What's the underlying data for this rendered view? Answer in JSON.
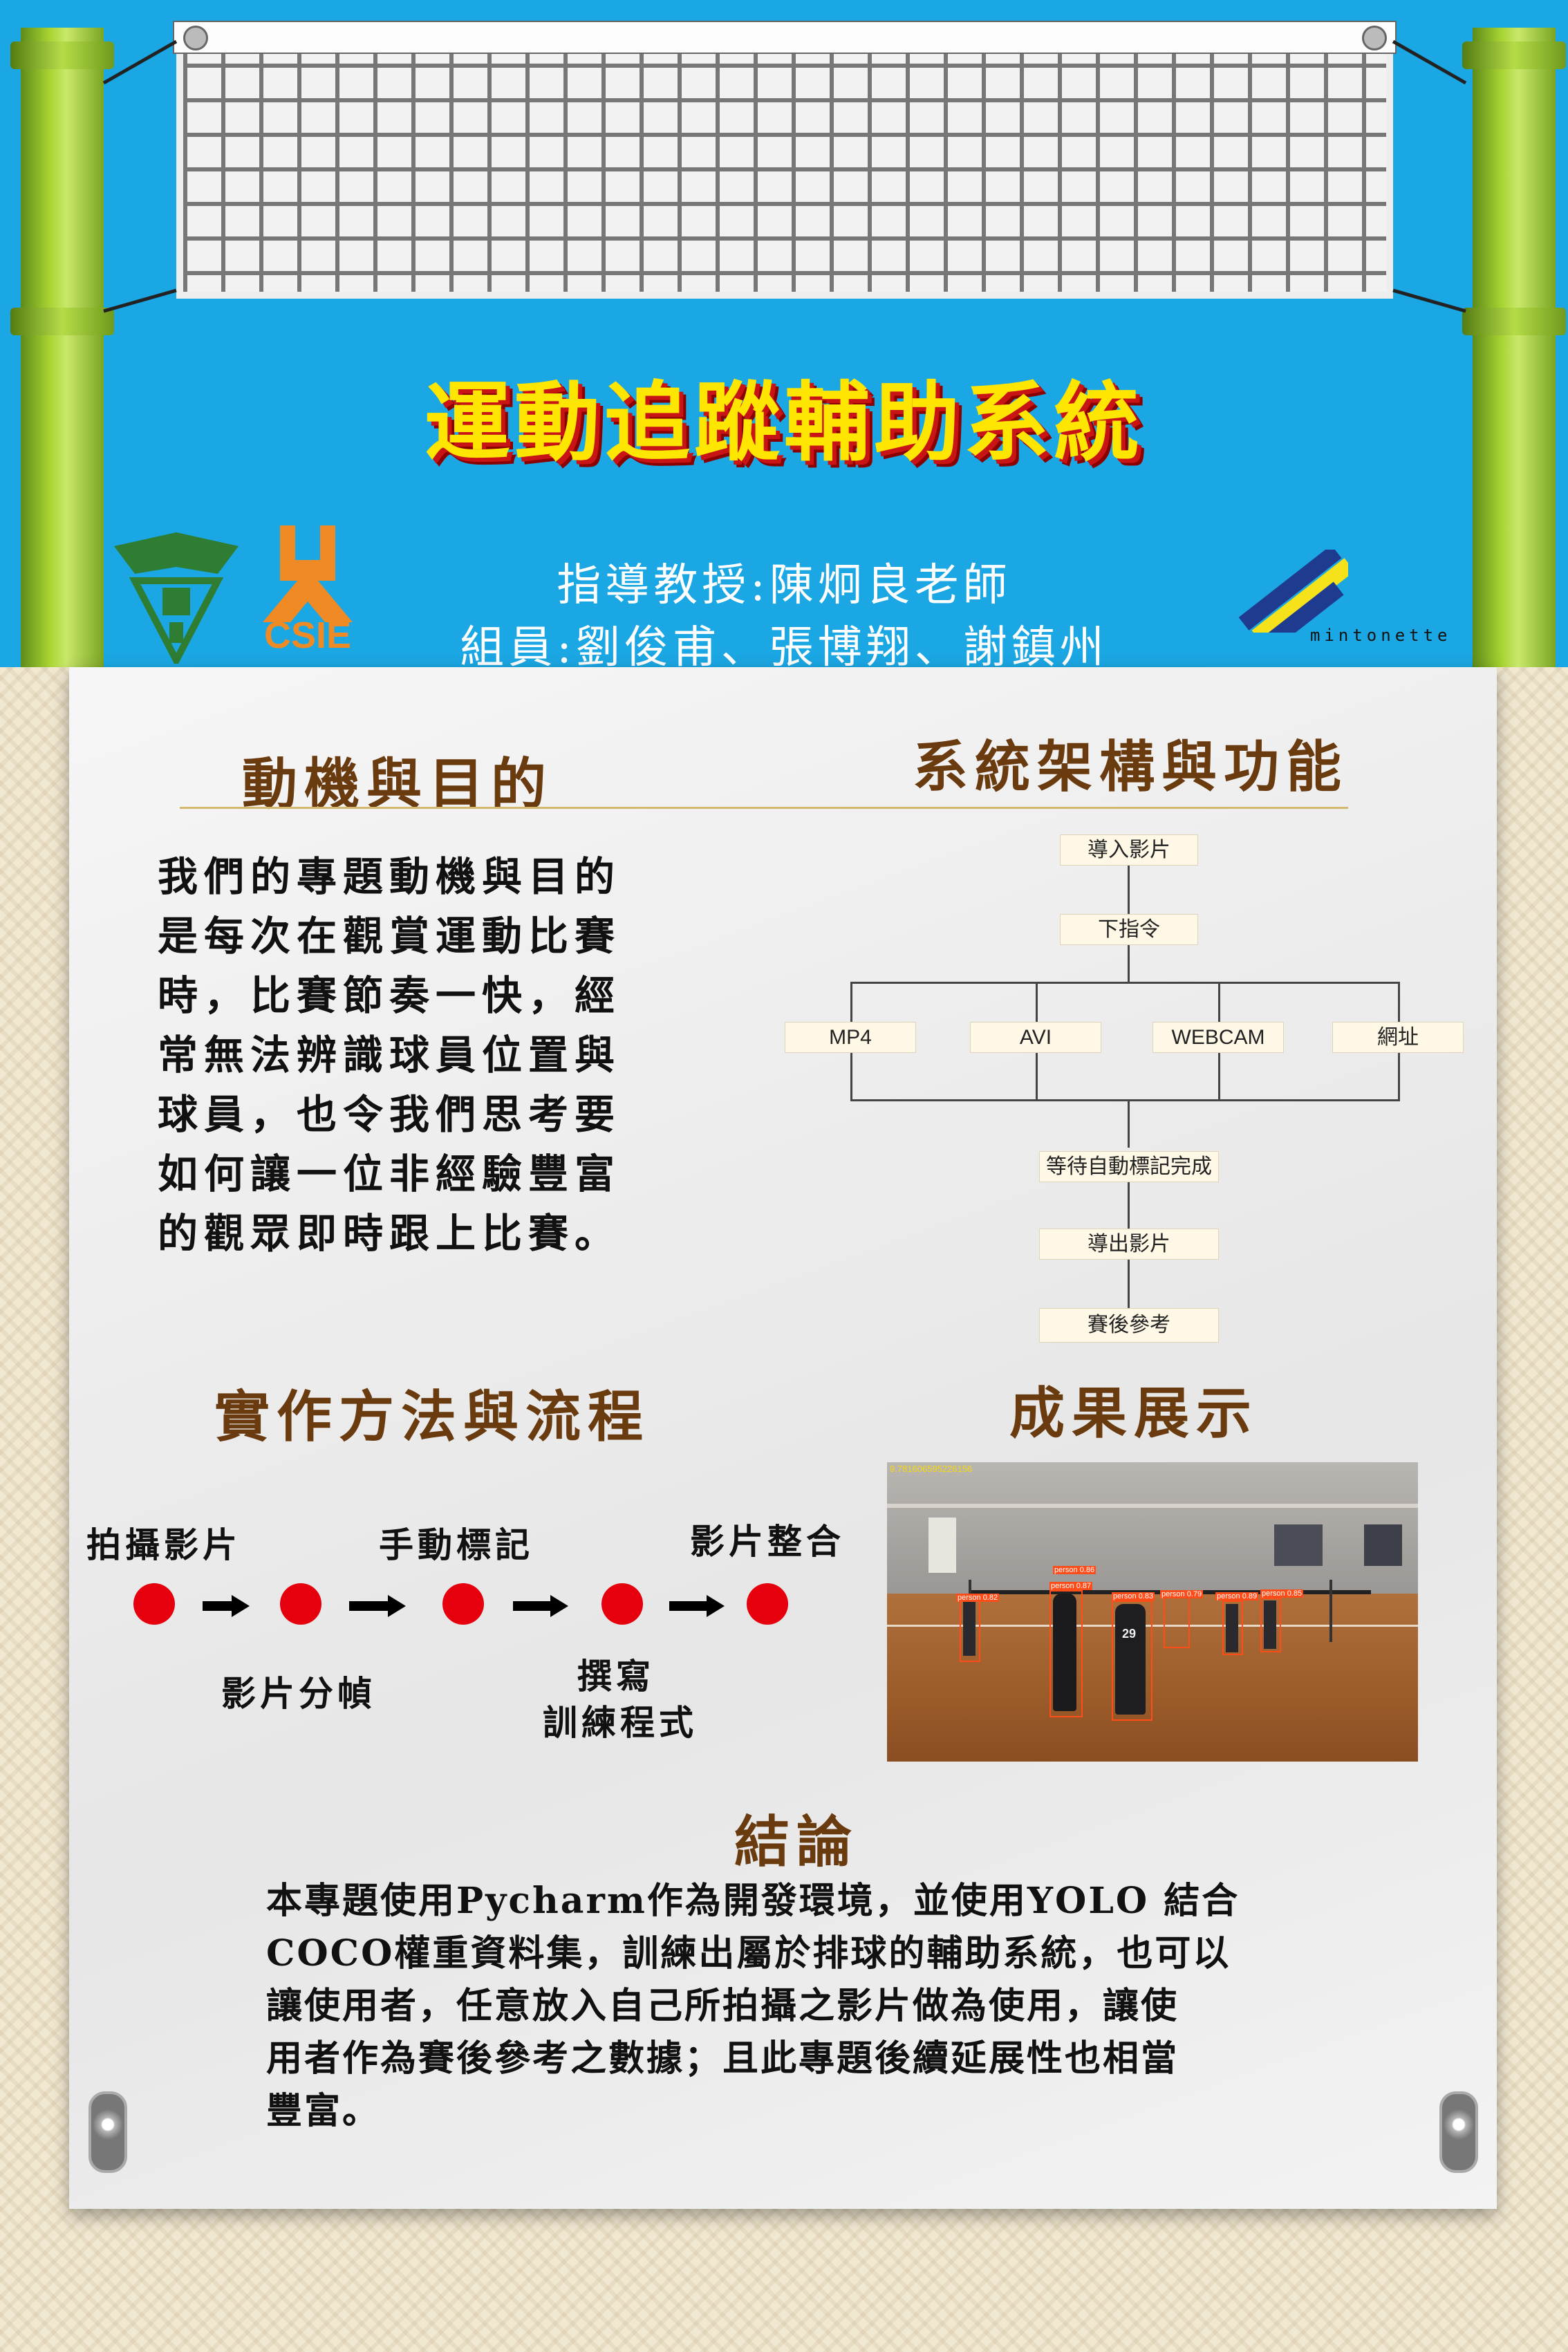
{
  "poster": {
    "title": "運動追蹤輔助系統",
    "advisor": "指導教授:陳炯良老師",
    "members": "組員:劉俊甫、張博翔、謝鎮州",
    "logo_csie_text": "CSIE",
    "logo_right_text": "mintonette"
  },
  "sections": {
    "motive": {
      "heading": "動機與目的",
      "lines": [
        "我們的專題動機與目的",
        "是每次在觀賞運動比賽",
        "時，比賽節奏一快，經",
        "常無法辨識球員位置與",
        "球員，也令我們思考要",
        "如何讓一位非經驗豐富",
        "的觀眾即時跟上比賽。"
      ]
    },
    "architecture": {
      "heading": "系統架構與功能",
      "flow": {
        "import": "導入影片",
        "command": "下指令",
        "options": [
          "MP4",
          "AVI",
          "WEBCAM",
          "網址"
        ],
        "wait": "等待自動標記完成",
        "export": "導出影片",
        "reference": "賽後參考"
      }
    },
    "method": {
      "heading": "實作方法與流程",
      "top_labels": [
        "拍攝影片",
        "手動標記",
        "影片整合"
      ],
      "bottom_labels": [
        "影片分幀",
        "撰寫",
        "訓練程式"
      ]
    },
    "results": {
      "heading": "成果展示",
      "overlay_text": "9.781606595226156",
      "box_labels": [
        "person 0.87",
        "person 0.83",
        "person 0.82",
        "person 0.79",
        "person 0.89",
        "person 0.85",
        "person 0.86"
      ],
      "jersey": "29"
    },
    "conclusion": {
      "heading": "結論",
      "lines": [
        "本專題使用Pycharm作為開發環境，並使用YOLO 結合",
        "COCO權重資料集，訓練出屬於排球的輔助系統，也可以",
        "讓使用者，任意放入自己所拍攝之影片做為使用，讓使",
        "用者作為賽後參考之數據；且此專題後續延展性也相當",
        "豐富。"
      ]
    }
  },
  "colors": {
    "header_bg": "#1ba7e3",
    "title_fill": "#ffe600",
    "title_shadow": "#c81414",
    "heading": "#6b3b10",
    "dot": "#e6000e"
  }
}
